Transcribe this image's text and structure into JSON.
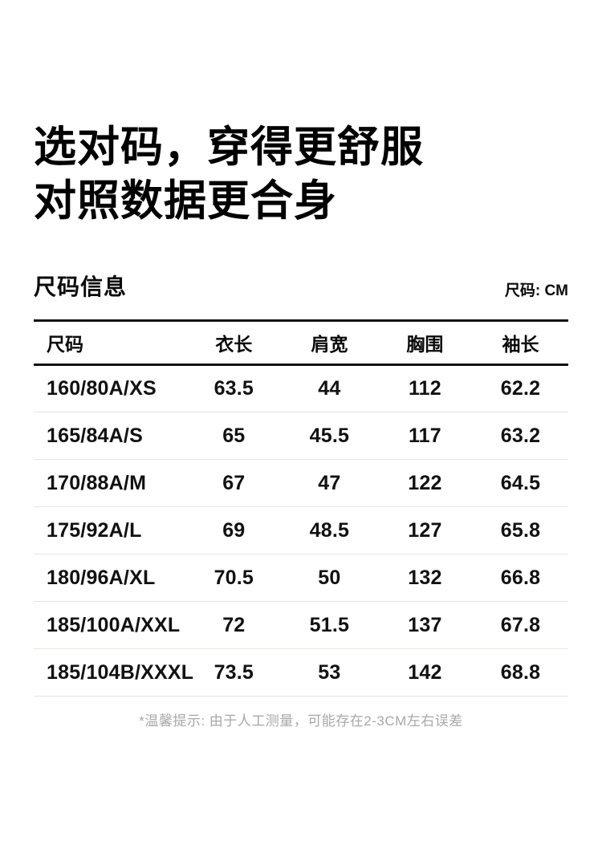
{
  "header": {
    "title_line1": "选对码，穿得更舒服",
    "title_line2": "对照数据更合身"
  },
  "section": {
    "title": "尺码信息",
    "unit_label": "尺码: CM"
  },
  "chart_data": {
    "type": "table",
    "title": "尺码信息",
    "unit": "CM",
    "columns": [
      "尺码",
      "衣长",
      "肩宽",
      "胸围",
      "袖长"
    ],
    "rows": [
      [
        "160/80A/XS",
        "63.5",
        "44",
        "112",
        "62.2"
      ],
      [
        "165/84A/S",
        "65",
        "45.5",
        "117",
        "63.2"
      ],
      [
        "170/88A/M",
        "67",
        "47",
        "122",
        "64.5"
      ],
      [
        "175/92A/L",
        "69",
        "48.5",
        "127",
        "65.8"
      ],
      [
        "180/96A/XL",
        "70.5",
        "50",
        "132",
        "66.8"
      ],
      [
        "185/100A/XXL",
        "72",
        "51.5",
        "137",
        "67.8"
      ],
      [
        "185/104B/XXXL",
        "73.5",
        "53",
        "142",
        "68.8"
      ]
    ]
  },
  "footnote": "*温馨提示: 由于人工测量，可能存在2-3CM左右误差",
  "colors": {
    "text": "#0a0a0a",
    "border_strong": "#111111",
    "border_light": "#e7e5e1",
    "muted_text": "#a8a8a6",
    "background": "#ffffff"
  }
}
